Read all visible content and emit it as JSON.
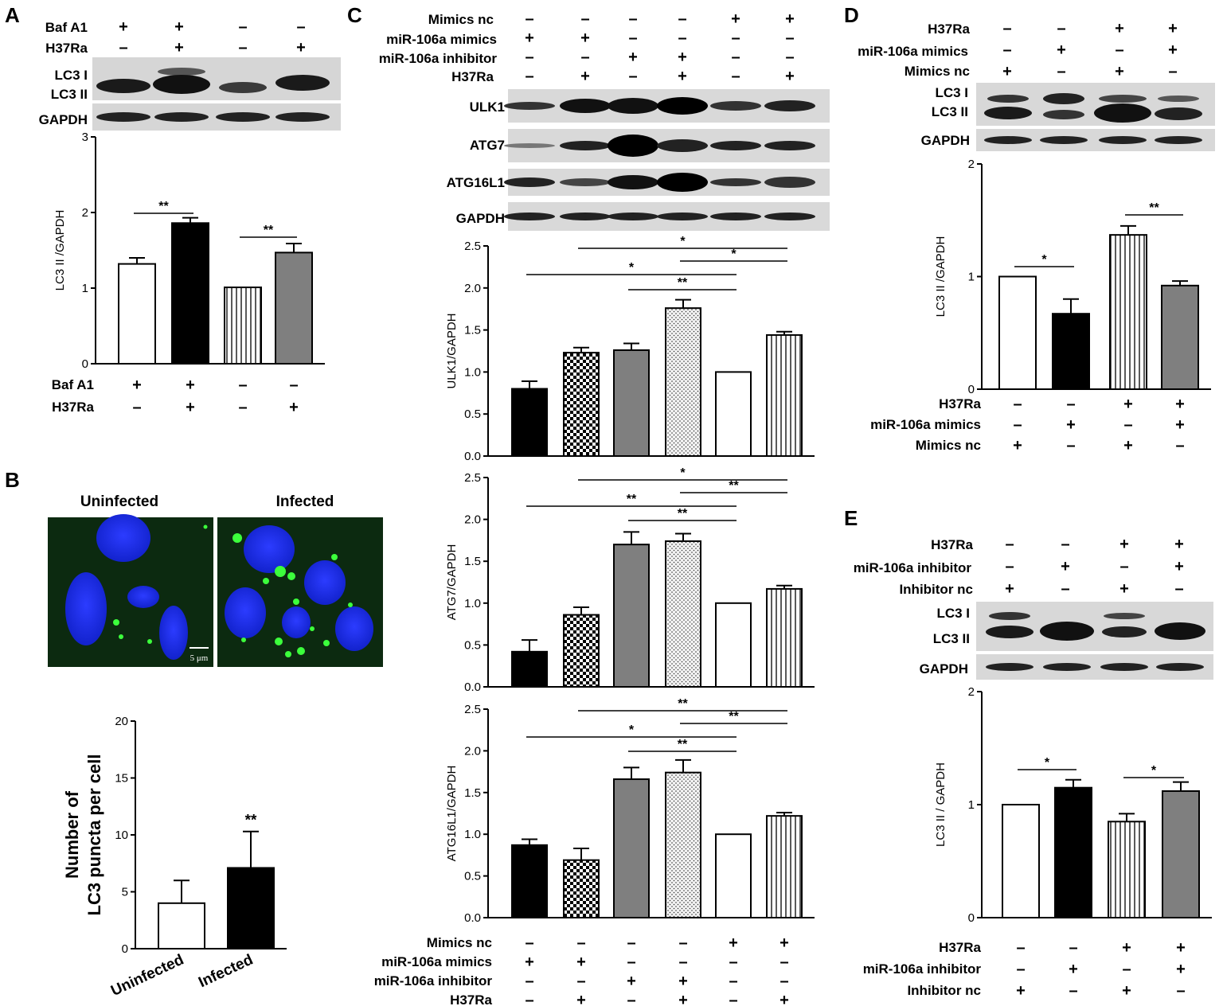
{
  "panels": {
    "A": "A",
    "B": "B",
    "C": "C",
    "D": "D",
    "E": "E"
  },
  "signs": {
    "plus": "+",
    "minus": "–"
  },
  "blot_labels": {
    "A": {
      "rows": [
        "Baf A1",
        "H37Ra"
      ],
      "bands": [
        "LC3 I",
        "LC3 II",
        "GAPDH"
      ]
    },
    "C": {
      "rows": [
        "Mimics nc",
        "miR-106a mimics",
        "miR-106a inhibitor",
        "H37Ra"
      ],
      "bands": [
        "ULK1",
        "ATG7",
        "ATG16L1",
        "GAPDH"
      ]
    },
    "D": {
      "rows": [
        "H37Ra",
        "miR-106a mimics",
        "Mimics nc"
      ],
      "bands": [
        "LC3 I",
        "LC3 II",
        "GAPDH"
      ]
    },
    "E": {
      "rows": [
        "H37Ra",
        "miR-106a inhibitor",
        "Inhibitor nc"
      ],
      "bands": [
        "LC3 I",
        "LC3 II",
        "GAPDH"
      ]
    }
  },
  "microscopy": {
    "titles": [
      "Uninfected",
      "Infected"
    ],
    "scale_label": "5 μm"
  },
  "chart_data": [
    {
      "id": "A",
      "type": "bar",
      "ylabel": "LC3 II /GAPDH",
      "ylim": [
        0,
        3
      ],
      "yticks": [
        "0",
        "1",
        "2",
        "3"
      ],
      "values": [
        1.32,
        1.86,
        1.01,
        1.47
      ],
      "errors": [
        0.08,
        0.07,
        0,
        0.12
      ],
      "fills": [
        "white",
        "black",
        "vstripe",
        "gray"
      ],
      "conditions": {
        "Baf A1": [
          "+",
          "+",
          "–",
          "–"
        ],
        "H37Ra": [
          "–",
          "+",
          "–",
          "+"
        ]
      },
      "significance": [
        {
          "from": 0,
          "to": 1,
          "label": "**"
        },
        {
          "from": 2,
          "to": 3,
          "label": "**"
        }
      ]
    },
    {
      "id": "B",
      "type": "bar",
      "ylabel": "Number of LC3 puncta per cell",
      "ylim": [
        0,
        20
      ],
      "yticks": [
        "0",
        "5",
        "10",
        "15",
        "20"
      ],
      "categories": [
        "Uninfected",
        "Infected"
      ],
      "values": [
        4.0,
        7.1
      ],
      "errors": [
        2.0,
        3.2
      ],
      "fills": [
        "white",
        "black"
      ],
      "annotations": [
        "",
        "**"
      ]
    },
    {
      "id": "C1",
      "type": "bar",
      "ylabel": "ULK1/GAPDH",
      "ylim": [
        0,
        2.5
      ],
      "yticks": [
        "0.0",
        "0.5",
        "1.0",
        "1.5",
        "2.0",
        "2.5"
      ],
      "values": [
        0.8,
        1.23,
        1.26,
        1.76,
        1.0,
        1.44
      ],
      "errors": [
        0.09,
        0.06,
        0.08,
        0.1,
        0,
        0.04
      ],
      "fills": [
        "black",
        "check",
        "gray",
        "dots",
        "white",
        "vstripe"
      ],
      "significance": [
        {
          "from": 1,
          "to": 5,
          "label": "*"
        },
        {
          "from": 3,
          "to": 5,
          "label": "*"
        },
        {
          "from": 0,
          "to": 4,
          "label": "*"
        },
        {
          "from": 2,
          "to": 4,
          "label": "**"
        }
      ]
    },
    {
      "id": "C2",
      "type": "bar",
      "ylabel": "ATG7/GAPDH",
      "ylim": [
        0,
        2.5
      ],
      "yticks": [
        "0.0",
        "0.5",
        "1.0",
        "1.5",
        "2.0",
        "2.5"
      ],
      "values": [
        0.42,
        0.86,
        1.7,
        1.74,
        1.0,
        1.17
      ],
      "errors": [
        0.14,
        0.09,
        0.15,
        0.09,
        0,
        0.04
      ],
      "fills": [
        "black",
        "check",
        "gray",
        "dots",
        "white",
        "vstripe"
      ],
      "significance": [
        {
          "from": 1,
          "to": 5,
          "label": "*"
        },
        {
          "from": 3,
          "to": 5,
          "label": "**"
        },
        {
          "from": 0,
          "to": 4,
          "label": "**"
        },
        {
          "from": 2,
          "to": 4,
          "label": "**"
        }
      ]
    },
    {
      "id": "C3",
      "type": "bar",
      "ylabel": "ATG16L1/GAPDH",
      "ylim": [
        0,
        2.5
      ],
      "yticks": [
        "0.0",
        "0.5",
        "1.0",
        "1.5",
        "2.0",
        "2.5"
      ],
      "values": [
        0.87,
        0.69,
        1.66,
        1.74,
        1.0,
        1.22
      ],
      "errors": [
        0.07,
        0.14,
        0.14,
        0.15,
        0,
        0.04
      ],
      "fills": [
        "black",
        "check",
        "gray",
        "dots",
        "white",
        "vstripe"
      ],
      "conditions": {
        "Mimics nc": [
          "–",
          "–",
          "–",
          "–",
          "+",
          "+"
        ],
        "miR-106a mimics": [
          "+",
          "+",
          "–",
          "–",
          "–",
          "–"
        ],
        "miR-106a inhibitor": [
          "–",
          "–",
          "+",
          "+",
          "–",
          "–"
        ],
        "H37Ra": [
          "–",
          "+",
          "–",
          "+",
          "–",
          "+"
        ]
      },
      "significance": [
        {
          "from": 1,
          "to": 5,
          "label": "**"
        },
        {
          "from": 3,
          "to": 5,
          "label": "**"
        },
        {
          "from": 0,
          "to": 4,
          "label": "*"
        },
        {
          "from": 2,
          "to": 4,
          "label": "**"
        }
      ]
    },
    {
      "id": "D",
      "type": "bar",
      "ylabel": "LC3 II /GAPDH",
      "ylim": [
        0,
        2
      ],
      "yticks": [
        "0",
        "1",
        "2"
      ],
      "values": [
        1.0,
        0.67,
        1.37,
        0.92
      ],
      "errors": [
        0,
        0.13,
        0.08,
        0.04
      ],
      "fills": [
        "white",
        "black",
        "vstripe",
        "gray"
      ],
      "conditions": {
        "H37Ra": [
          "–",
          "–",
          "+",
          "+"
        ],
        "miR-106a mimics": [
          "–",
          "+",
          "–",
          "+"
        ],
        "Mimics nc": [
          "+",
          "–",
          "+",
          "–"
        ]
      },
      "significance": [
        {
          "from": 0,
          "to": 1,
          "label": "*"
        },
        {
          "from": 2,
          "to": 3,
          "label": "**"
        }
      ]
    },
    {
      "id": "E",
      "type": "bar",
      "ylabel": "LC3 II / GAPDH",
      "ylim": [
        0,
        2
      ],
      "yticks": [
        "0",
        "1",
        "2"
      ],
      "values": [
        1.0,
        1.15,
        0.85,
        1.12
      ],
      "errors": [
        0,
        0.07,
        0.07,
        0.08
      ],
      "fills": [
        "white",
        "black",
        "vstripe",
        "gray"
      ],
      "conditions": {
        "H37Ra": [
          "–",
          "–",
          "+",
          "+"
        ],
        "miR-106a inhibitor": [
          "–",
          "+",
          "–",
          "+"
        ],
        "Inhibitor nc": [
          "+",
          "–",
          "+",
          "–"
        ]
      },
      "significance": [
        {
          "from": 0,
          "to": 1,
          "label": "*"
        },
        {
          "from": 2,
          "to": 3,
          "label": "*"
        }
      ]
    }
  ]
}
